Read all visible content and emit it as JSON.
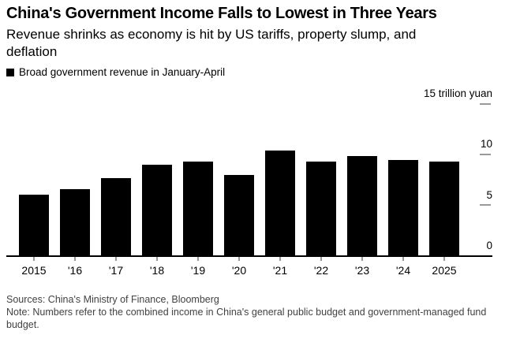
{
  "header": {
    "title": "China's Government Income Falls to Lowest in Three Years",
    "subtitle": "Revenue shrinks as economy is hit by US tariffs, property slump, and deflation"
  },
  "legend": {
    "label": "Broad government revenue in January-April",
    "swatch_color": "#000000"
  },
  "footer": {
    "sources": "Sources: China's Ministry of Finance, Bloomberg",
    "note": "Note: Numbers refer to the combined income in China's general public budget and government-managed fund budget."
  },
  "colors": {
    "bar": "#000000",
    "axis_line": "#000000",
    "tick": "#999999",
    "text": "#000000",
    "footer_text": "#424242",
    "background": "#ffffff"
  },
  "chart_data": {
    "type": "bar",
    "title": "China's Government Income Falls to Lowest in Three Years",
    "subtitle": "Revenue shrinks as economy is hit by US tariffs, property slump, and deflation",
    "series_name": "Broad government revenue in January-April",
    "categories": [
      "2015",
      "'16",
      "'17",
      "'18",
      "'19",
      "'20",
      "'21",
      "'22",
      "'23",
      "'24",
      "2025"
    ],
    "values": [
      6.1,
      6.6,
      7.7,
      9.0,
      9.3,
      8.0,
      10.4,
      9.3,
      9.9,
      9.5,
      9.3
    ],
    "unit": "trillion yuan",
    "xlabel": "",
    "ylabel": "trillion yuan",
    "ylim": [
      0,
      15
    ],
    "grid": false,
    "legend_position": "top-left",
    "y_axis": {
      "side": "right",
      "ticks": [
        {
          "value": 0,
          "label": "0",
          "dash": false
        },
        {
          "value": 5,
          "label": "5",
          "dash": true
        },
        {
          "value": 10,
          "label": "10",
          "dash": true
        },
        {
          "value": 15,
          "label": "15 trillion yuan",
          "dash": true
        }
      ]
    }
  }
}
